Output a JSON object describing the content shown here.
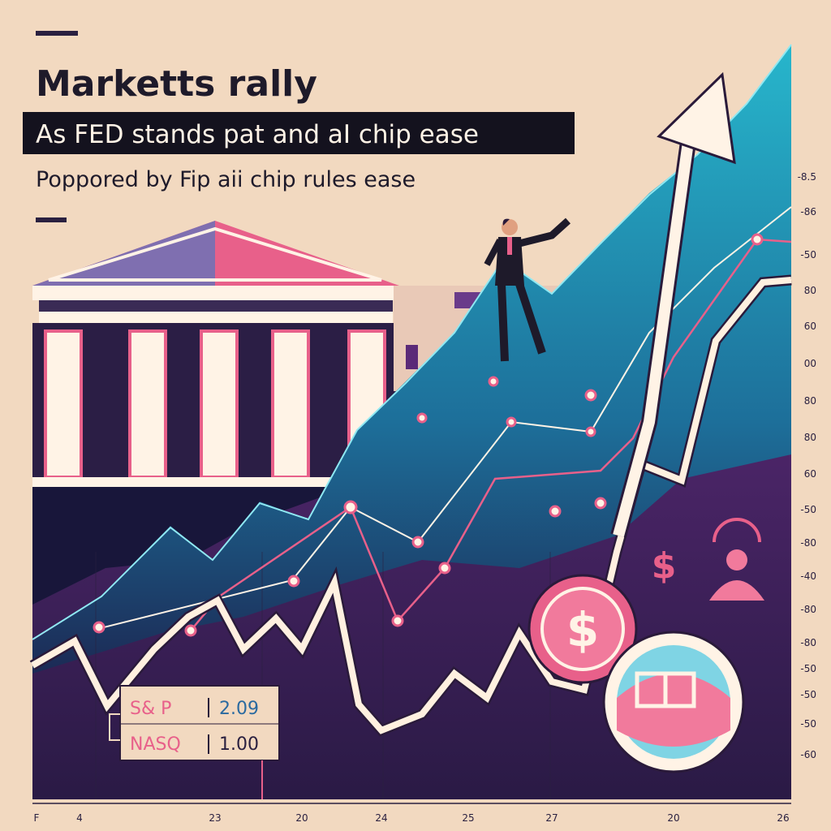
{
  "header": {
    "title": "Marketts rally",
    "subtitle": "As FED stands pat and aI chip ease",
    "tagline": "Poppored by Fip aii chip rules ease"
  },
  "ticker": {
    "rows": [
      [
        "S& P",
        "2.09"
      ],
      [
        "NASQ",
        "1.00"
      ]
    ]
  },
  "icons": {
    "coin_symbol": "$"
  },
  "axis": {
    "right_labels": [
      "-8.5",
      "-86",
      "-50",
      "80",
      "60",
      "00",
      "80",
      "80",
      "60",
      "-50",
      "-80",
      "-40",
      "-80",
      "-80",
      "-50",
      "-50",
      "-50",
      "-60"
    ],
    "bottom_labels": [
      "F",
      "4",
      "23",
      "20",
      "24",
      "25",
      "27",
      "20",
      "26"
    ]
  }
}
